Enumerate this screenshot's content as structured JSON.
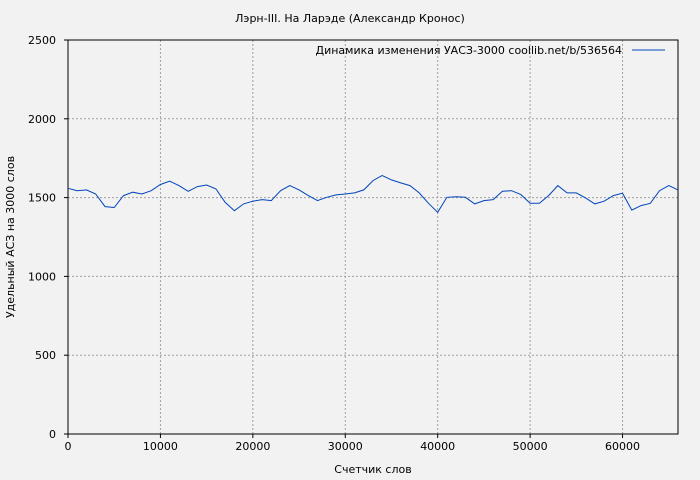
{
  "chart_data": {
    "type": "line",
    "title": "Лэрн-III. На Ларэде (Александр Кронос)",
    "xlabel": "Счетчик слов",
    "ylabel": "Удельный АСЗ на 3000 слов",
    "xlim": [
      0,
      66000
    ],
    "ylim": [
      0,
      2500
    ],
    "xticks": [
      0,
      10000,
      20000,
      30000,
      40000,
      50000,
      60000
    ],
    "yticks": [
      0,
      500,
      1000,
      1500,
      2000,
      2500
    ],
    "grid": true,
    "legend_position": "top-right",
    "series": [
      {
        "name": "Динамика изменения УАСЗ-3000  coollib.net/b/536564",
        "color": "#0044bb",
        "x": [
          0,
          1000,
          2000,
          3000,
          4000,
          5000,
          6000,
          7000,
          8000,
          9000,
          10000,
          11000,
          12000,
          13000,
          14000,
          15000,
          16000,
          17000,
          18000,
          19000,
          20000,
          21000,
          22000,
          23000,
          24000,
          25000,
          26000,
          27000,
          28000,
          29000,
          30000,
          31000,
          32000,
          33000,
          34000,
          35000,
          36000,
          37000,
          38000,
          39000,
          40000,
          41000,
          42000,
          43000,
          44000,
          45000,
          46000,
          47000,
          48000,
          49000,
          50000,
          51000,
          52000,
          53000,
          54000,
          55000,
          56000,
          57000,
          58000,
          59000,
          60000,
          61000,
          62000,
          63000,
          64000,
          65000,
          66000
        ],
        "y": [
          1559,
          1544,
          1549,
          1523,
          1443,
          1437,
          1513,
          1534,
          1523,
          1544,
          1583,
          1604,
          1576,
          1540,
          1570,
          1580,
          1555,
          1470,
          1417,
          1460,
          1477,
          1487,
          1481,
          1544,
          1576,
          1549,
          1513,
          1481,
          1502,
          1517,
          1523,
          1530,
          1549,
          1608,
          1640,
          1612,
          1593,
          1576,
          1530,
          1464,
          1407,
          1502,
          1506,
          1502,
          1460,
          1481,
          1487,
          1540,
          1544,
          1519,
          1464,
          1464,
          1513,
          1576,
          1530,
          1530,
          1498,
          1460,
          1477,
          1513,
          1528,
          1421,
          1449,
          1464,
          1544,
          1576,
          1549
        ]
      }
    ]
  }
}
